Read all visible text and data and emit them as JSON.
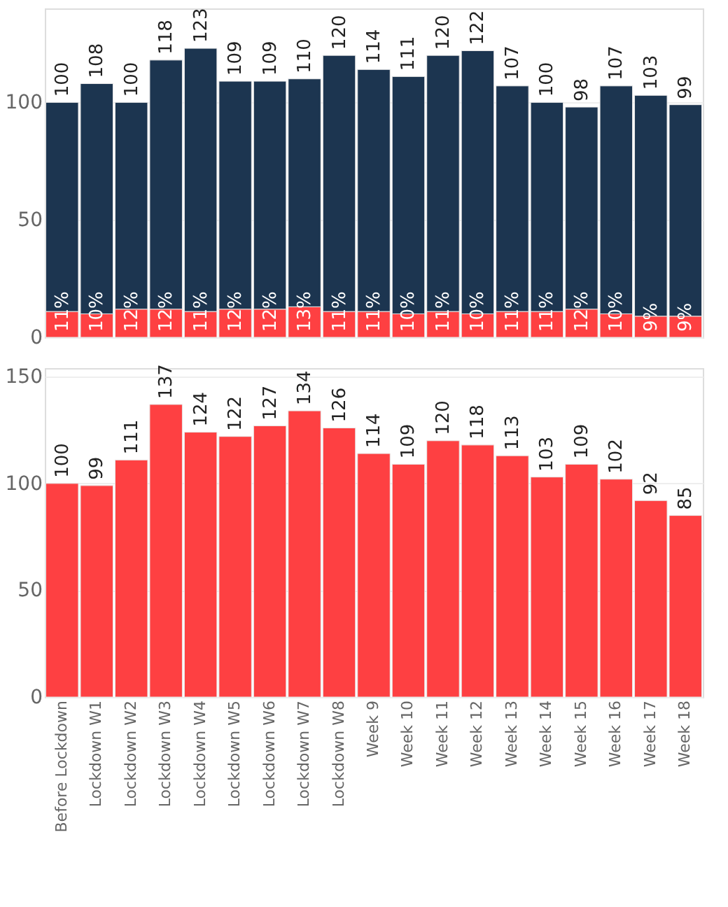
{
  "chart_data": [
    {
      "type": "bar",
      "stacked": true,
      "categories": [
        null,
        null,
        null,
        null,
        null,
        null,
        null,
        null,
        null,
        null,
        null,
        null,
        null,
        null,
        null,
        null,
        null,
        null,
        null
      ],
      "series": [
        {
          "color": "#fe4042",
          "values": [
            11,
            10,
            12,
            12,
            11,
            12,
            12,
            13,
            11,
            11,
            10,
            11,
            10,
            11,
            11,
            12,
            10,
            9,
            9
          ],
          "value_labels": [
            "11%",
            "10%",
            "12%",
            "12%",
            "11%",
            "12%",
            "12%",
            "13%",
            "11%",
            "11%",
            "10%",
            "11%",
            "10%",
            "11%",
            "11%",
            "12%",
            "10%",
            "9%",
            "9%"
          ]
        },
        {
          "color": "#1c3550",
          "values": [
            89,
            98,
            88,
            106,
            112,
            97,
            97,
            97,
            109,
            103,
            101,
            109,
            112,
            96,
            89,
            86,
            97,
            94,
            90
          ]
        }
      ],
      "totals": [
        "100",
        "108",
        "100",
        "118",
        "123",
        "109",
        "109",
        "110",
        "120",
        "114",
        "111",
        "120",
        "122",
        "107",
        "100",
        "98",
        "107",
        "103",
        "99"
      ],
      "ylim": [
        0,
        140
      ],
      "yticks": [
        0,
        50,
        100
      ],
      "grid": "y",
      "tick_labels": "y",
      "legend": false
    },
    {
      "type": "bar",
      "categories": [
        "Before Lockdown",
        "Lockdown W1",
        "Lockdown W2",
        "Lockdown W3",
        "Lockdown W4",
        "Lockdown W5",
        "Lockdown W6",
        "Lockdown W7",
        "Lockdown W8",
        "Week 9",
        "Week 10",
        "Week 11",
        "Week 12",
        "Week 13",
        "Week 14",
        "Week 15",
        "Week 16",
        "Week 17",
        "Week 18"
      ],
      "series": [
        {
          "color": "#fe4042",
          "values": [
            100,
            99,
            111,
            137,
            124,
            122,
            127,
            134,
            126,
            114,
            109,
            120,
            118,
            113,
            103,
            109,
            102,
            92,
            85
          ]
        }
      ],
      "data_labels": true,
      "ylim": [
        0,
        154
      ],
      "yticks": [
        0,
        50,
        100,
        150
      ],
      "grid": "y",
      "legend": false
    }
  ]
}
